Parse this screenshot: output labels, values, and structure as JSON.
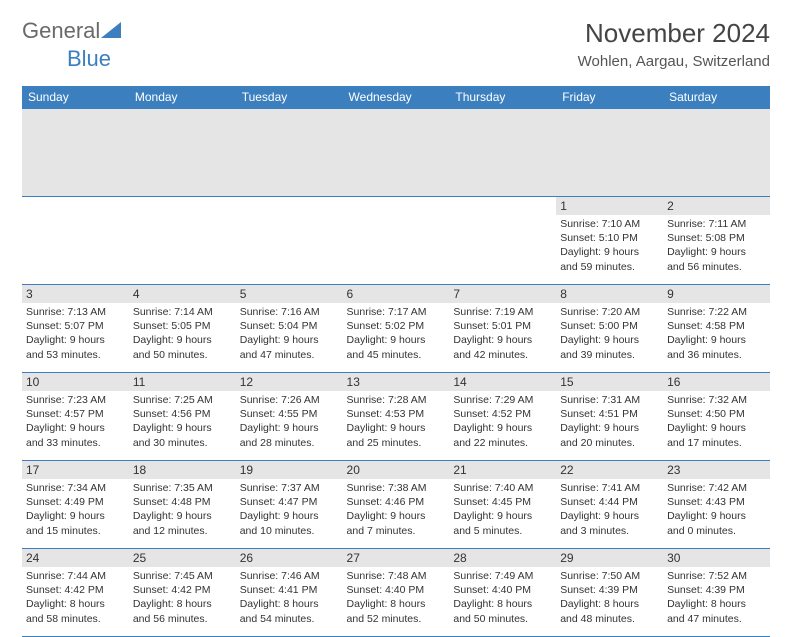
{
  "logo": {
    "text1": "General",
    "text2": "Blue"
  },
  "header": {
    "month_title": "November 2024",
    "location": "Wohlen, Aargau, Switzerland"
  },
  "colors": {
    "header_bg": "#3b7fbf",
    "header_text": "#ffffff",
    "daynum_bg": "#e5e5e5",
    "border": "#3b7fbf",
    "body_bg": "#ffffff",
    "text": "#333333"
  },
  "daynames": [
    "Sunday",
    "Monday",
    "Tuesday",
    "Wednesday",
    "Thursday",
    "Friday",
    "Saturday"
  ],
  "weeks": [
    [
      null,
      null,
      null,
      null,
      null,
      {
        "n": "1",
        "sr": "Sunrise: 7:10 AM",
        "ss": "Sunset: 5:10 PM",
        "dl": "Daylight: 9 hours and 59 minutes."
      },
      {
        "n": "2",
        "sr": "Sunrise: 7:11 AM",
        "ss": "Sunset: 5:08 PM",
        "dl": "Daylight: 9 hours and 56 minutes."
      }
    ],
    [
      {
        "n": "3",
        "sr": "Sunrise: 7:13 AM",
        "ss": "Sunset: 5:07 PM",
        "dl": "Daylight: 9 hours and 53 minutes."
      },
      {
        "n": "4",
        "sr": "Sunrise: 7:14 AM",
        "ss": "Sunset: 5:05 PM",
        "dl": "Daylight: 9 hours and 50 minutes."
      },
      {
        "n": "5",
        "sr": "Sunrise: 7:16 AM",
        "ss": "Sunset: 5:04 PM",
        "dl": "Daylight: 9 hours and 47 minutes."
      },
      {
        "n": "6",
        "sr": "Sunrise: 7:17 AM",
        "ss": "Sunset: 5:02 PM",
        "dl": "Daylight: 9 hours and 45 minutes."
      },
      {
        "n": "7",
        "sr": "Sunrise: 7:19 AM",
        "ss": "Sunset: 5:01 PM",
        "dl": "Daylight: 9 hours and 42 minutes."
      },
      {
        "n": "8",
        "sr": "Sunrise: 7:20 AM",
        "ss": "Sunset: 5:00 PM",
        "dl": "Daylight: 9 hours and 39 minutes."
      },
      {
        "n": "9",
        "sr": "Sunrise: 7:22 AM",
        "ss": "Sunset: 4:58 PM",
        "dl": "Daylight: 9 hours and 36 minutes."
      }
    ],
    [
      {
        "n": "10",
        "sr": "Sunrise: 7:23 AM",
        "ss": "Sunset: 4:57 PM",
        "dl": "Daylight: 9 hours and 33 minutes."
      },
      {
        "n": "11",
        "sr": "Sunrise: 7:25 AM",
        "ss": "Sunset: 4:56 PM",
        "dl": "Daylight: 9 hours and 30 minutes."
      },
      {
        "n": "12",
        "sr": "Sunrise: 7:26 AM",
        "ss": "Sunset: 4:55 PM",
        "dl": "Daylight: 9 hours and 28 minutes."
      },
      {
        "n": "13",
        "sr": "Sunrise: 7:28 AM",
        "ss": "Sunset: 4:53 PM",
        "dl": "Daylight: 9 hours and 25 minutes."
      },
      {
        "n": "14",
        "sr": "Sunrise: 7:29 AM",
        "ss": "Sunset: 4:52 PM",
        "dl": "Daylight: 9 hours and 22 minutes."
      },
      {
        "n": "15",
        "sr": "Sunrise: 7:31 AM",
        "ss": "Sunset: 4:51 PM",
        "dl": "Daylight: 9 hours and 20 minutes."
      },
      {
        "n": "16",
        "sr": "Sunrise: 7:32 AM",
        "ss": "Sunset: 4:50 PM",
        "dl": "Daylight: 9 hours and 17 minutes."
      }
    ],
    [
      {
        "n": "17",
        "sr": "Sunrise: 7:34 AM",
        "ss": "Sunset: 4:49 PM",
        "dl": "Daylight: 9 hours and 15 minutes."
      },
      {
        "n": "18",
        "sr": "Sunrise: 7:35 AM",
        "ss": "Sunset: 4:48 PM",
        "dl": "Daylight: 9 hours and 12 minutes."
      },
      {
        "n": "19",
        "sr": "Sunrise: 7:37 AM",
        "ss": "Sunset: 4:47 PM",
        "dl": "Daylight: 9 hours and 10 minutes."
      },
      {
        "n": "20",
        "sr": "Sunrise: 7:38 AM",
        "ss": "Sunset: 4:46 PM",
        "dl": "Daylight: 9 hours and 7 minutes."
      },
      {
        "n": "21",
        "sr": "Sunrise: 7:40 AM",
        "ss": "Sunset: 4:45 PM",
        "dl": "Daylight: 9 hours and 5 minutes."
      },
      {
        "n": "22",
        "sr": "Sunrise: 7:41 AM",
        "ss": "Sunset: 4:44 PM",
        "dl": "Daylight: 9 hours and 3 minutes."
      },
      {
        "n": "23",
        "sr": "Sunrise: 7:42 AM",
        "ss": "Sunset: 4:43 PM",
        "dl": "Daylight: 9 hours and 0 minutes."
      }
    ],
    [
      {
        "n": "24",
        "sr": "Sunrise: 7:44 AM",
        "ss": "Sunset: 4:42 PM",
        "dl": "Daylight: 8 hours and 58 minutes."
      },
      {
        "n": "25",
        "sr": "Sunrise: 7:45 AM",
        "ss": "Sunset: 4:42 PM",
        "dl": "Daylight: 8 hours and 56 minutes."
      },
      {
        "n": "26",
        "sr": "Sunrise: 7:46 AM",
        "ss": "Sunset: 4:41 PM",
        "dl": "Daylight: 8 hours and 54 minutes."
      },
      {
        "n": "27",
        "sr": "Sunrise: 7:48 AM",
        "ss": "Sunset: 4:40 PM",
        "dl": "Daylight: 8 hours and 52 minutes."
      },
      {
        "n": "28",
        "sr": "Sunrise: 7:49 AM",
        "ss": "Sunset: 4:40 PM",
        "dl": "Daylight: 8 hours and 50 minutes."
      },
      {
        "n": "29",
        "sr": "Sunrise: 7:50 AM",
        "ss": "Sunset: 4:39 PM",
        "dl": "Daylight: 8 hours and 48 minutes."
      },
      {
        "n": "30",
        "sr": "Sunrise: 7:52 AM",
        "ss": "Sunset: 4:39 PM",
        "dl": "Daylight: 8 hours and 47 minutes."
      }
    ]
  ]
}
